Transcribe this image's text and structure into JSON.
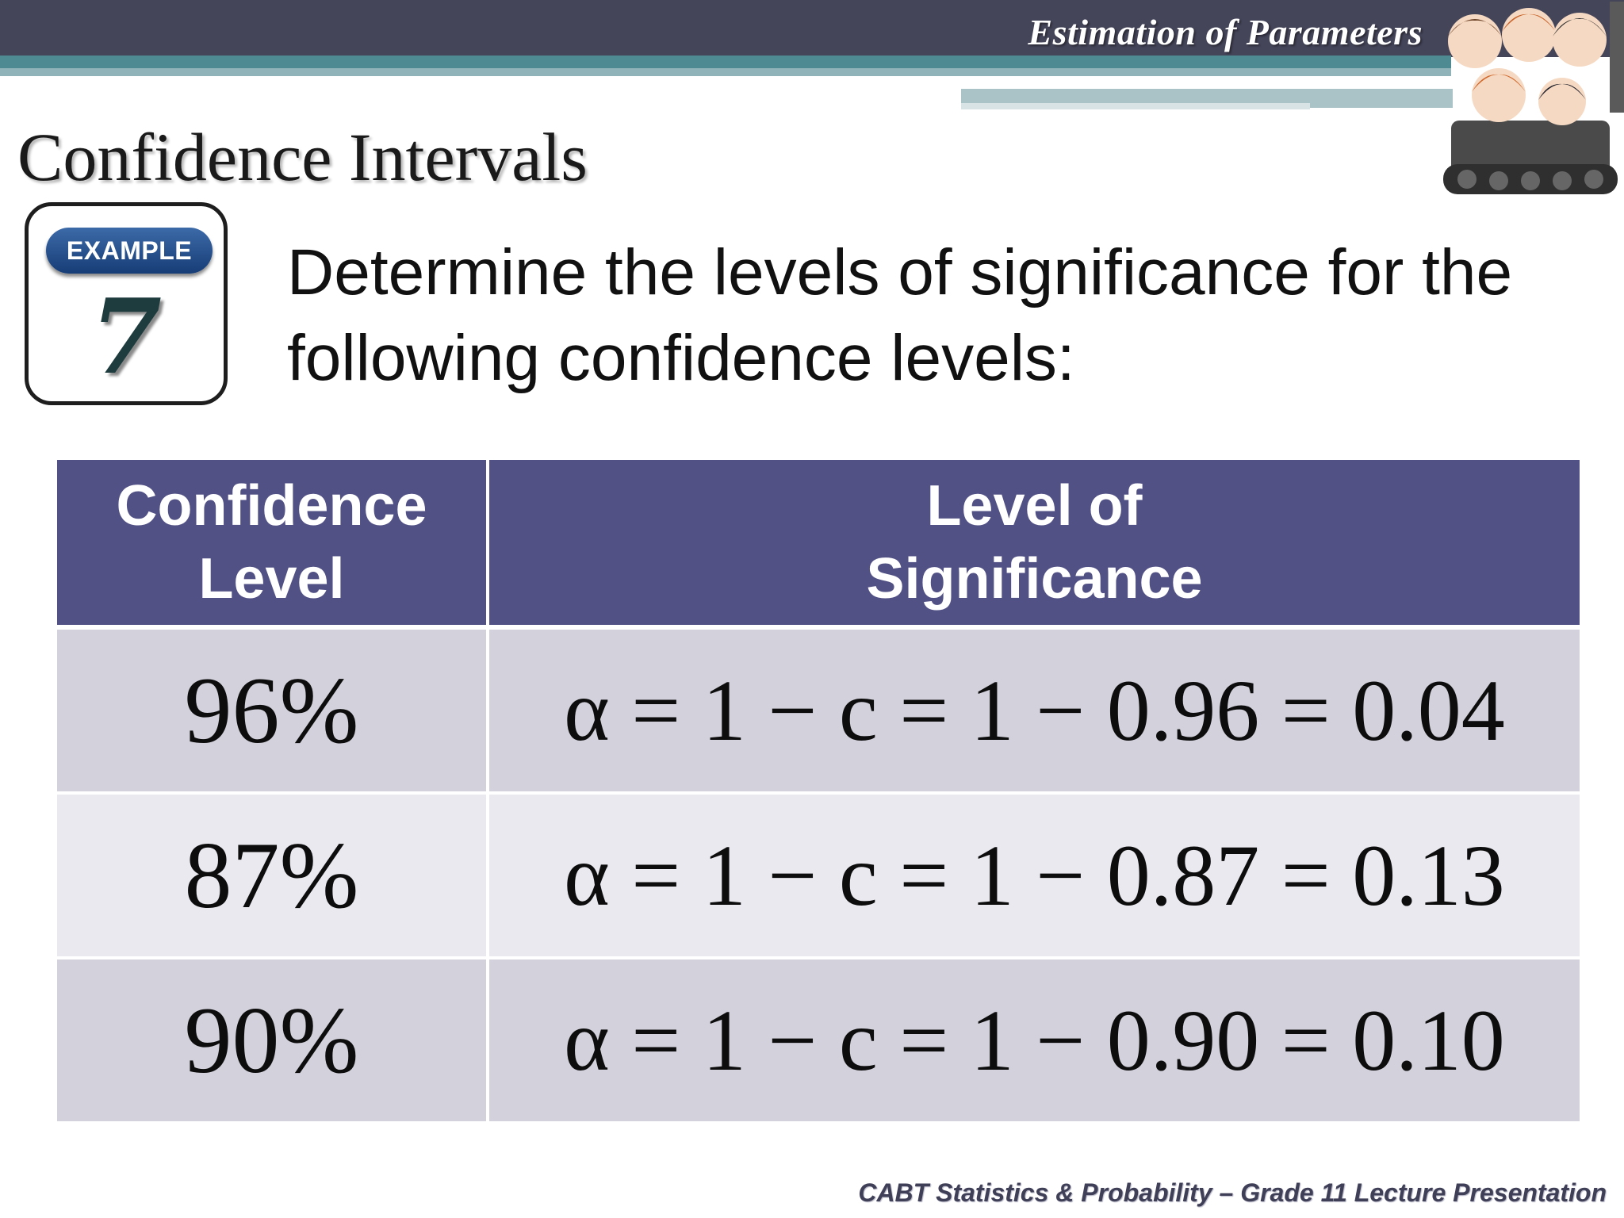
{
  "header": {
    "section_title": "Estimation of Parameters"
  },
  "slide": {
    "title": "Confidence Intervals",
    "badge": {
      "label": "EXAMPLE",
      "number": "7"
    },
    "prompt": "Determine the levels of significance for the following confidence levels:"
  },
  "table": {
    "headers": [
      {
        "line1": "Confidence",
        "line2": "Level"
      },
      {
        "line1": "Level of",
        "line2": "Significance"
      }
    ],
    "rows": [
      {
        "confidence": "96%",
        "formula": "α = 1 − c = 1 − 0.96 = 0.04"
      },
      {
        "confidence": "87%",
        "formula": "α = 1 − c = 1 − 0.87 = 0.13"
      },
      {
        "confidence": "90%",
        "formula": "α = 1 − c = 1 − 0.90 = 0.10"
      }
    ]
  },
  "footer": {
    "text": "CABT Statistics & Probability – Grade 11 Lecture Presentation"
  },
  "colors": {
    "header_dark": "#45455a",
    "header_teal": "#4d8a92",
    "table_header": "#525185",
    "row_dark": "#d2d1dc",
    "row_light": "#e9e9ef",
    "badge_blue": "#1f4a8a"
  }
}
